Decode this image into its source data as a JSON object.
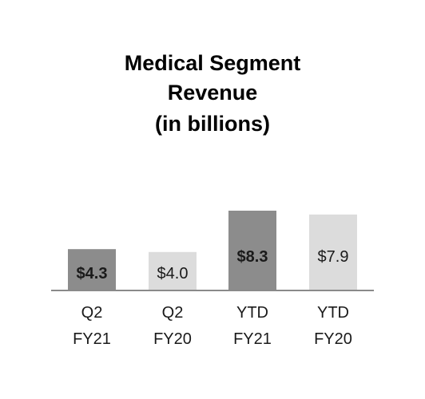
{
  "chart_data": {
    "type": "bar",
    "title_lines": [
      "Medical Segment",
      "Revenue",
      "(in billions)"
    ],
    "categories": [
      [
        "Q2",
        "FY21"
      ],
      [
        "Q2",
        "FY20"
      ],
      [
        "YTD",
        "FY21"
      ],
      [
        "YTD",
        "FY20"
      ]
    ],
    "values": [
      4.3,
      4.0,
      8.3,
      7.9
    ],
    "value_labels": [
      "$4.3",
      "$4.0",
      "$8.3",
      "$7.9"
    ],
    "bar_colors": [
      "#8c8c8c",
      "#dcdcdc",
      "#8c8c8c",
      "#dcdcdc"
    ],
    "label_bold": [
      true,
      false,
      true,
      false
    ],
    "ylim": [
      0,
      9
    ],
    "grid": false,
    "legend": "none"
  }
}
